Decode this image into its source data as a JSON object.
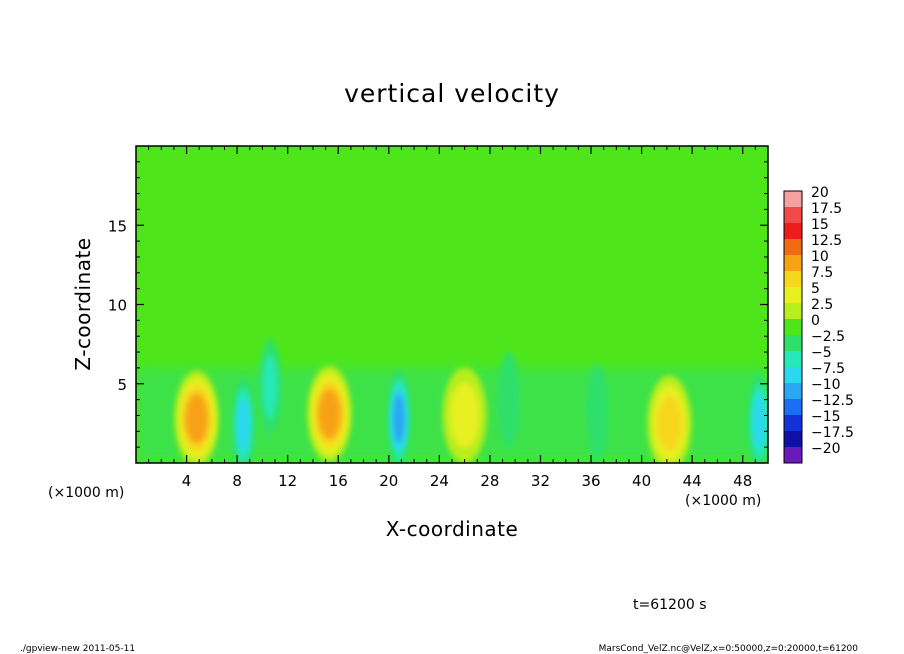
{
  "chart_data": {
    "type": "heatmap",
    "title": "vertical velocity",
    "xlabel": "X-coordinate",
    "ylabel": "Z-coordinate",
    "x_unit": "(×1000 m)",
    "xlim": [
      0,
      50
    ],
    "ylim": [
      0,
      20
    ],
    "xticks": [
      4,
      8,
      12,
      16,
      20,
      24,
      28,
      32,
      36,
      40,
      44,
      48
    ],
    "yticks": [
      5,
      10,
      15
    ],
    "colorbar": {
      "levels": [
        20,
        17.5,
        15,
        12.5,
        10,
        7.5,
        5,
        2.5,
        0,
        -2.5,
        -5,
        -7.5,
        -10,
        -12.5,
        -15,
        -17.5,
        -20
      ],
      "colors": [
        "#f7a0a0",
        "#f24a4a",
        "#ee1c1c",
        "#f26a14",
        "#f7a214",
        "#f7d61e",
        "#e8f020",
        "#b8ee1c",
        "#4ee61a",
        "#2ee06a",
        "#26e8b8",
        "#2ad8f0",
        "#2aa6f2",
        "#1c6ef2",
        "#1232d8",
        "#1010a8",
        "#6a1ab8"
      ]
    },
    "features": [
      {
        "x": 4.8,
        "z": 2.8,
        "value": 11,
        "kind": "updraft"
      },
      {
        "x": 8.5,
        "z": 2.4,
        "value": -8,
        "kind": "downdraft"
      },
      {
        "x": 10.6,
        "z": 4.8,
        "value": -6,
        "kind": "downdraft"
      },
      {
        "x": 15.3,
        "z": 3.1,
        "value": 10,
        "kind": "updraft"
      },
      {
        "x": 20.8,
        "z": 2.8,
        "value": -11,
        "kind": "downdraft"
      },
      {
        "x": 26.0,
        "z": 3.0,
        "value": 6,
        "kind": "updraft"
      },
      {
        "x": 29.5,
        "z": 4.0,
        "value": -4,
        "kind": "downdraft"
      },
      {
        "x": 36.5,
        "z": 3.2,
        "value": -4,
        "kind": "downdraft"
      },
      {
        "x": 42.2,
        "z": 2.5,
        "value": 9,
        "kind": "updraft"
      },
      {
        "x": 49.3,
        "z": 2.6,
        "value": -9,
        "kind": "downdraft"
      }
    ]
  },
  "annotations": {
    "time": "t=61200 s",
    "footer_left": "./gpview-new   2011-05-11",
    "footer_right": "MarsCond_VelZ.nc@VelZ,x=0:50000,z=0:20000,t=61200"
  }
}
